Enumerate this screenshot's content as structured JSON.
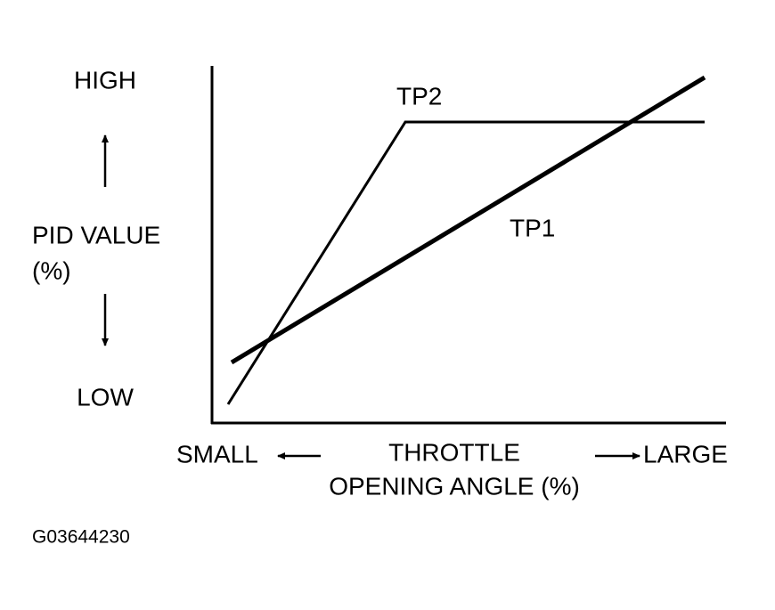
{
  "y_axis": {
    "high": "HIGH",
    "label_line1": "PID VALUE",
    "label_line2": "(%)",
    "low": "LOW"
  },
  "curves": {
    "tp2": "TP2",
    "tp1": "TP1"
  },
  "x_axis": {
    "small": "SMALL",
    "label_line1": "THROTTLE",
    "label_line2": "OPENING ANGLE (%)",
    "large": "LARGE"
  },
  "figure_id": "G03644230"
}
